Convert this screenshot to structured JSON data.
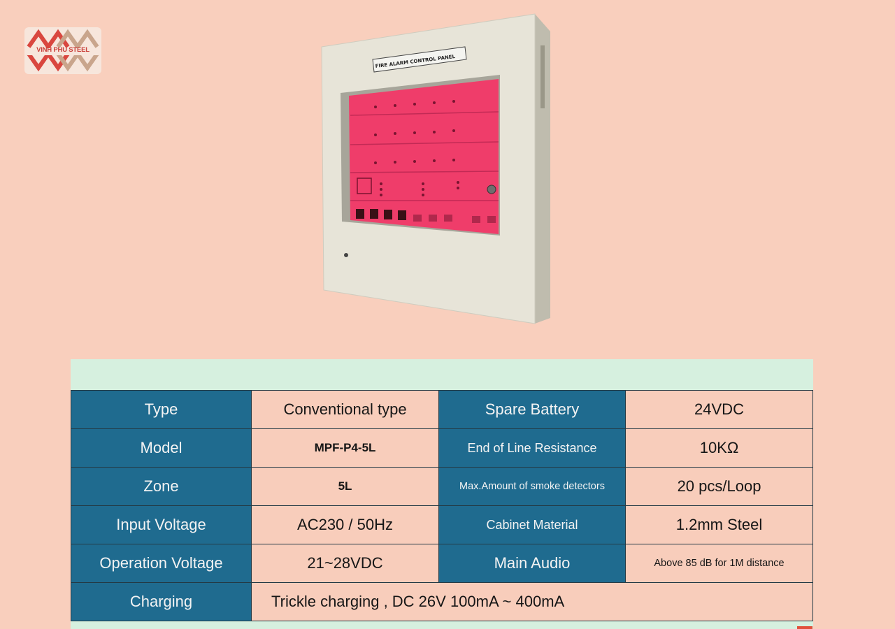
{
  "logo": {
    "text": "VINH PHU STEEL"
  },
  "product": {
    "panel_title": "FIRE ALARM CONTROL PANEL"
  },
  "specs": {
    "rows": [
      {
        "label1": "Type",
        "value1": "Conventional type",
        "label2": "Spare Battery",
        "value2": "24VDC"
      },
      {
        "label1": "Model",
        "value1": "MPF-P4-5L",
        "label2": "End of Line Resistance",
        "value2": "10KΩ"
      },
      {
        "label1": "Zone",
        "value1": "5L",
        "label2": "Max.Amount of smoke detectors",
        "value2": "20 pcs/Loop"
      },
      {
        "label1": "Input Voltage",
        "value1": "AC230 / 50Hz",
        "label2": "Cabinet Material",
        "value2": "1.2mm Steel"
      },
      {
        "label1": "Operation Voltage",
        "value1": "21~28VDC",
        "label2": "Main Audio",
        "value2": "Above 85 dB for 1M distance"
      },
      {
        "label1": "Charging",
        "value1": "Trickle charging , DC 26V 100mA ~ 400mA"
      }
    ]
  }
}
